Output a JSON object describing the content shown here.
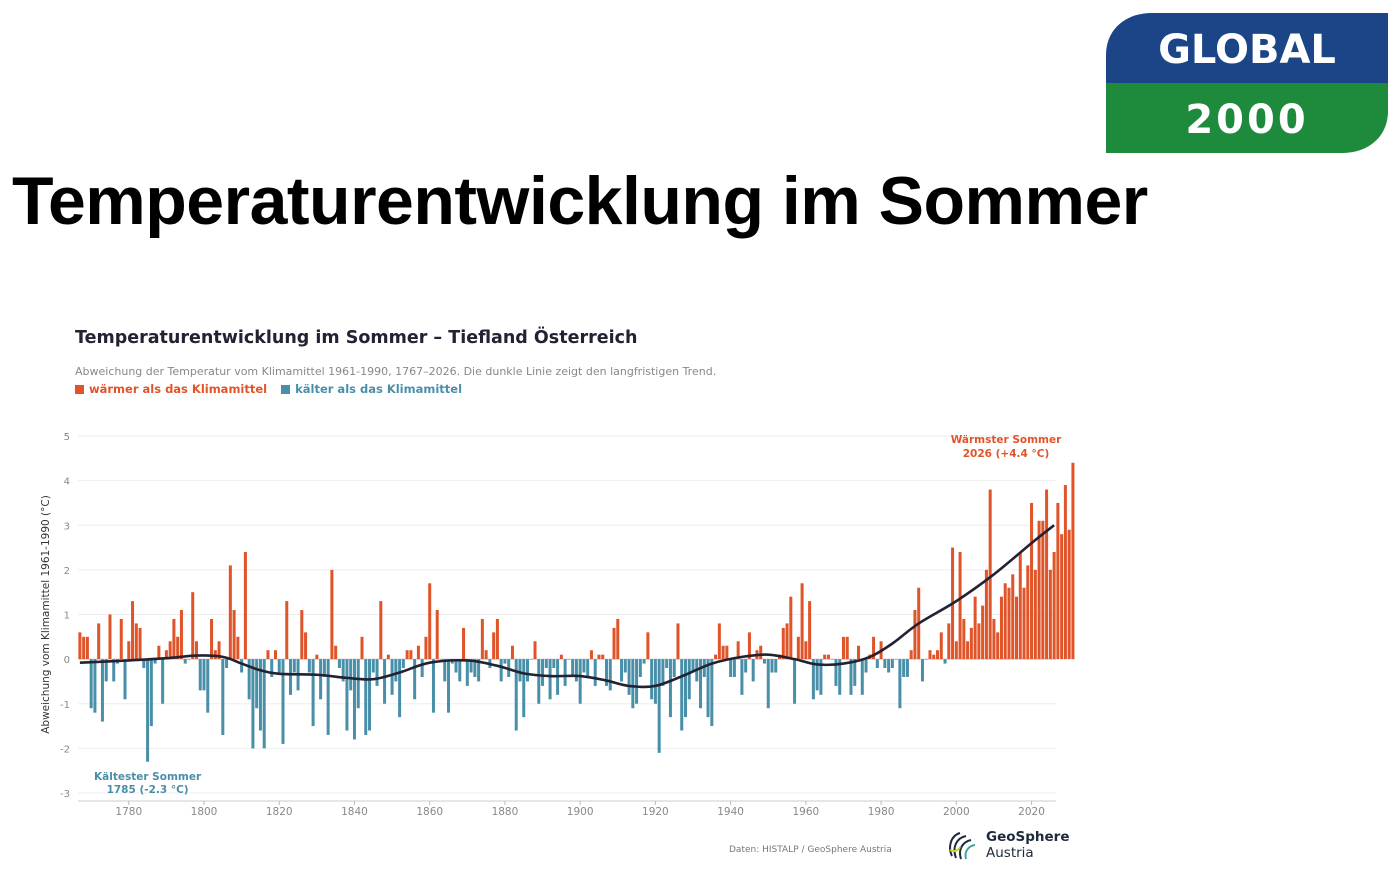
{
  "slide": {
    "title": "Temperaturentwicklung im Sommer"
  },
  "logo": {
    "line1": "GLOBAL",
    "line2": "2000",
    "colors": {
      "top": "#1c4587",
      "bottom": "#1e8a3c"
    }
  },
  "chart_data": {
    "type": "bar",
    "title": "Temperaturentwicklung im Sommer – Tiefland Österreich",
    "subtitle": "Abweichung der Temperatur vom Klimamittel 1961-1990, 1767–2026. Die dunkle Linie zeigt den langfristigen Trend.",
    "legend": [
      {
        "label": "wärmer als das Klimamittel",
        "color": "#e0542a"
      },
      {
        "label": "kälter als das Klimamittel",
        "color": "#4a8fa8"
      }
    ],
    "ylabel": "Abweichung vom Klimamittel 1961-1990 (°C)",
    "xlabel": "",
    "xlim": [
      1767,
      2026
    ],
    "ylim": [
      -3,
      5
    ],
    "y_ticks": [
      -3,
      -2,
      -1,
      0,
      1,
      2,
      3,
      4,
      5
    ],
    "x_ticks": [
      1780,
      1800,
      1820,
      1840,
      1860,
      1880,
      1900,
      1920,
      1940,
      1960,
      1980,
      2000,
      2020
    ],
    "grid": true,
    "colors": {
      "warm": "#e0542a",
      "cold": "#4a8fa8",
      "trend": "#222233"
    },
    "annotations": {
      "warmest": {
        "line1": "Wärmster Sommer",
        "line2": "2026 (+4.4 °C)",
        "year": 2026,
        "value": 4.4
      },
      "coldest": {
        "line1": "Kältester Sommer",
        "line2": "1785 (-2.3 °C)",
        "year": 1785,
        "value": -2.3
      }
    },
    "series": [
      {
        "start_year": 1767,
        "values": [
          0.6,
          0.5,
          0.5,
          -1.1,
          -1.2,
          0.8,
          -1.4,
          -0.5,
          1.0,
          -0.5,
          -0.1,
          0.9,
          -0.9,
          0.4,
          1.3,
          0.8,
          0.7,
          -0.2,
          -2.3,
          -1.5,
          -0.1,
          0.3,
          -1.0,
          0.2,
          0.4,
          0.9,
          0.5,
          1.1,
          -0.1,
          0.0,
          1.5,
          0.4,
          -0.7,
          -0.7,
          -1.2,
          0.9,
          0.2,
          0.4,
          -1.7,
          -0.2,
          2.1,
          1.1,
          0.5,
          -0.3,
          2.4,
          -0.9,
          -2.0,
          -1.1,
          -1.6,
          -2.0,
          0.2,
          -0.4,
          0.2,
          -0.3,
          -1.9,
          1.3,
          -0.8,
          -0.3,
          -0.7,
          1.1,
          0.6,
          -0.3,
          -1.5,
          0.1,
          -0.9,
          -0.4,
          -1.7,
          2.0,
          0.3,
          -0.2,
          -0.5,
          -1.6,
          -0.7,
          -1.8,
          -1.1,
          0.5,
          -1.7,
          -1.6,
          -0.3,
          -0.6,
          1.3,
          -1.0,
          0.1,
          -0.8,
          -0.5,
          -1.3,
          -0.2,
          0.2,
          0.2,
          -0.9,
          0.3,
          -0.4,
          0.5,
          1.7,
          -1.2,
          1.1,
          0.0,
          -0.5,
          -1.2,
          -0.1,
          -0.3,
          -0.5,
          0.7,
          -0.6,
          -0.3,
          -0.4,
          -0.5,
          0.9,
          0.2,
          -0.2,
          0.6,
          0.9,
          -0.5,
          -0.1,
          -0.4,
          0.3,
          -1.6,
          -0.5,
          -1.3,
          -0.5,
          0.0,
          0.4,
          -1.0,
          -0.6,
          -0.2,
          -0.9,
          -0.2,
          -0.8,
          0.1,
          -0.6,
          0.0,
          -0.4,
          -0.5,
          -1.0,
          -0.3,
          -0.4,
          0.2,
          -0.6,
          0.1,
          0.1,
          -0.6,
          -0.7,
          0.7,
          0.9,
          -0.5,
          -0.3,
          -0.8,
          -1.1,
          -1.0,
          -0.4,
          -0.1,
          0.6,
          -0.9,
          -1.0,
          -2.1,
          -0.6,
          -0.2,
          -1.3,
          -0.4,
          0.8,
          -1.6,
          -1.3,
          -0.9,
          -0.3,
          -0.5,
          -1.1,
          -0.4,
          -1.3,
          -1.5,
          0.1,
          0.8,
          0.3,
          0.3,
          -0.4,
          -0.4,
          0.4,
          -0.8,
          -0.3,
          0.6,
          -0.5,
          0.2,
          0.3,
          -0.1,
          -1.1,
          -0.3,
          -0.3,
          0.1,
          0.7,
          0.8,
          1.4,
          -1.0,
          0.5,
          1.7,
          0.4,
          1.3,
          -0.9,
          -0.7,
          -0.8,
          0.1,
          0.1,
          0.0,
          -0.6,
          -0.8,
          0.5,
          0.5,
          -0.8,
          -0.6,
          0.3,
          -0.8,
          -0.3,
          0.1,
          0.5,
          -0.2,
          0.4,
          -0.2,
          -0.3,
          -0.2,
          0.0,
          -1.1,
          -0.4,
          -0.4,
          0.2,
          1.1,
          1.6,
          -0.5,
          0.0,
          0.2,
          0.1,
          0.2,
          0.6,
          -0.1,
          0.8,
          2.5,
          0.4,
          2.4,
          0.9,
          0.4,
          0.7,
          1.4,
          0.8,
          1.2,
          2.0,
          3.8,
          0.9,
          0.6,
          1.4,
          1.7,
          1.6,
          1.9,
          1.4,
          2.4,
          1.6,
          2.1,
          3.5,
          2.0,
          3.1,
          3.1,
          3.8,
          2.0,
          2.4,
          3.5,
          2.8,
          3.9,
          2.9,
          4.4
        ]
      },
      {
        "name": "Trend",
        "x": [
          1767,
          1780,
          1790,
          1798,
          1805,
          1810,
          1815,
          1820,
          1830,
          1838,
          1845,
          1852,
          1860,
          1870,
          1878,
          1885,
          1892,
          1900,
          1907,
          1913,
          1920,
          1928,
          1935,
          1943,
          1950,
          1957,
          1963,
          1970,
          1977,
          1983,
          1990,
          2000,
          2010,
          2020,
          2026
        ],
        "values": [
          -0.08,
          -0.03,
          0.02,
          0.08,
          0.05,
          -0.1,
          -0.25,
          -0.33,
          -0.35,
          -0.42,
          -0.45,
          -0.3,
          -0.08,
          -0.03,
          -0.15,
          -0.32,
          -0.38,
          -0.38,
          -0.48,
          -0.6,
          -0.6,
          -0.35,
          -0.1,
          0.05,
          0.1,
          0.0,
          -0.12,
          -0.1,
          0.05,
          0.35,
          0.8,
          1.3,
          1.9,
          2.6,
          3.0
        ]
      }
    ]
  },
  "footer": {
    "source": "Daten: HISTALP / GeoSphere Austria",
    "brand_line1": "GeoSphere",
    "brand_line2": "Austria"
  }
}
